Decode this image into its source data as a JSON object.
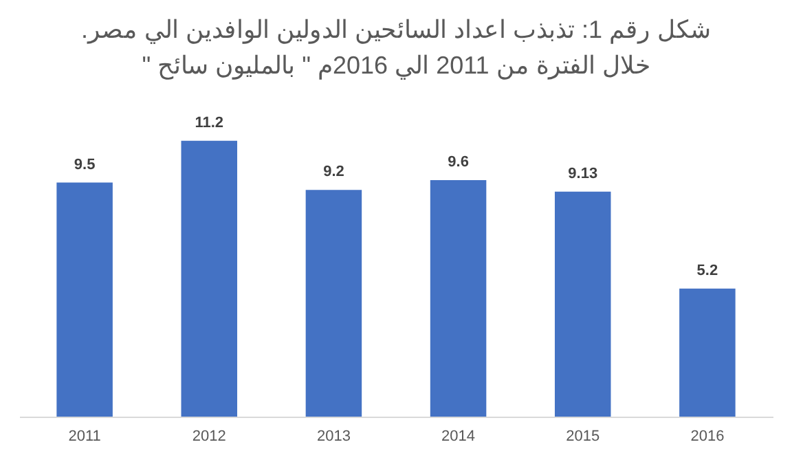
{
  "chart_data": {
    "type": "bar",
    "title": "شكل رقم 1: تذبذب اعداد السائحين الدولين الوافدين الي مصر.\nخلال الفترة من 2011 الي 2016م \" بالمليون سائح \"",
    "categories": [
      "2011",
      "2012",
      "2013",
      "2014",
      "2015",
      "2016"
    ],
    "values": [
      9.5,
      11.2,
      9.2,
      9.6,
      9.13,
      5.2
    ],
    "color": "#4472c4",
    "data_labels": true
  }
}
